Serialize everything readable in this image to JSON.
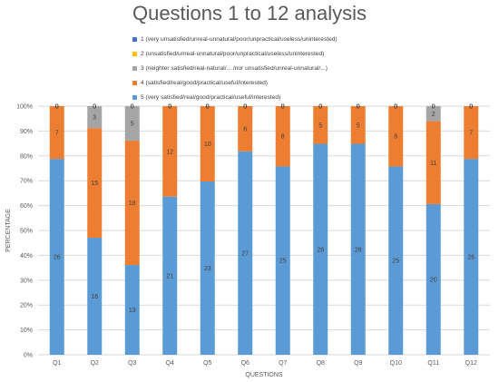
{
  "chart_data": {
    "type": "bar",
    "stacked": "percent",
    "title": "Questions 1 to 12 analysis",
    "xlabel": "QUESTIONS",
    "ylabel": "PERCENTAGE",
    "categories": [
      "Q1",
      "Q2",
      "Q3",
      "Q4",
      "Q5",
      "Q6",
      "Q7",
      "Q8",
      "Q9",
      "Q10",
      "Q11",
      "Q12"
    ],
    "ylim": [
      0,
      100
    ],
    "yticks": [
      "0%",
      "10%",
      "20%",
      "30%",
      "40%",
      "50%",
      "60%",
      "70%",
      "80%",
      "90%",
      "100%"
    ],
    "grid": true,
    "legend_position": "top",
    "series": [
      {
        "name": "5 (very satisfied/real/good/practical/useful/interested)",
        "color": "#5b9bd5",
        "values": [
          26,
          16,
          13,
          21,
          23,
          27,
          25,
          28,
          28,
          25,
          20,
          26
        ]
      },
      {
        "name": "4 (satisfied/real/good/practical/useful/interested)",
        "color": "#ed7d31",
        "values": [
          7,
          15,
          18,
          12,
          10,
          6,
          8,
          5,
          5,
          8,
          11,
          7
        ]
      },
      {
        "name": "3 (neighter satisfied/real-natural/... /nor unsatisfied/unreal-unnatural/...)",
        "color": "#a5a5a5",
        "values": [
          0,
          3,
          5,
          0,
          0,
          0,
          0,
          0,
          0,
          0,
          2,
          0
        ]
      },
      {
        "name": "2 (unsatisfied/unreal-unnatural/poor/unpractical/useless/uninterested)",
        "color": "#ffc000",
        "values": [
          0,
          0,
          0,
          0,
          0,
          0,
          0,
          0,
          0,
          0,
          0,
          0
        ]
      },
      {
        "name": "1 (very unsatisfied/unreal-unnatural/poor/unpractical/useless/uninterested)",
        "color": "#4472c4",
        "values": [
          0,
          0,
          0,
          0,
          0,
          0,
          0,
          0,
          0,
          0,
          0,
          0
        ]
      }
    ],
    "legend_order": [
      4,
      3,
      2,
      1,
      0
    ]
  }
}
